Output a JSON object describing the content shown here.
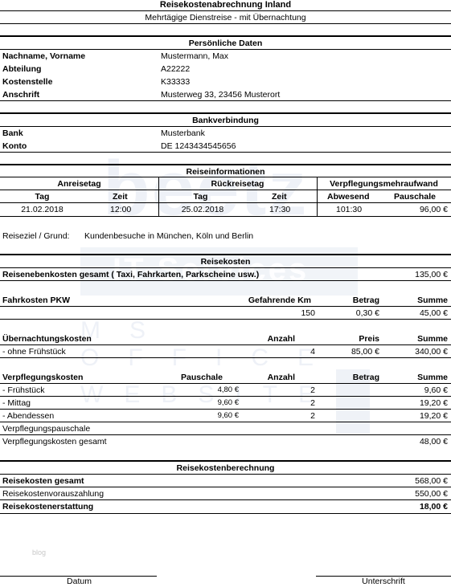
{
  "title": "Reisekostenabrechnung Inland",
  "subtitle": "Mehrtägige Dienstreise - mit Übernachtung",
  "personal": {
    "heading": "Persönliche Daten",
    "rows": [
      {
        "label": "Nachname, Vorname",
        "value": "Mustermann, Max"
      },
      {
        "label": "Abteilung",
        "value": "A22222"
      },
      {
        "label": "Kostenstelle",
        "value": "K33333"
      },
      {
        "label": "Anschrift",
        "value": "Musterweg 33, 23456 Musterort"
      }
    ]
  },
  "bank": {
    "heading": "Bankverbindung",
    "rows": [
      {
        "label": "Bank",
        "value": "Musterbank"
      },
      {
        "label": "Konto",
        "value": "DE 1243434545656"
      }
    ]
  },
  "trip": {
    "heading": "Reiseinformationen",
    "departure_label": "Anreisetag",
    "return_label": "Rückreisetag",
    "allowance_label": "Verpflegungsmehraufwand",
    "col_day": "Tag",
    "col_time": "Zeit",
    "col_absence": "Abwesend",
    "col_flat": "Pauschale",
    "dep_day": "21.02.2018",
    "dep_time": "12:00",
    "ret_day": "25.02.2018",
    "ret_time": "17:30",
    "absence": "101:30",
    "flat": "96,00 €",
    "goal_label": "Reiseziel / Grund:",
    "goal_value": "Kundenbesuche in München, Köln und Berlin"
  },
  "costs": {
    "heading": "Reisekosten",
    "incidental_label": "Reisenebenkosten gesamt ( Taxi, Fahrkarten, Parkscheine usw.)",
    "incidental_value": "135,00 €",
    "car": {
      "label": "Fahrkosten PKW",
      "col_km": "Gefahrende Km",
      "col_rate": "Betrag",
      "col_sum": "Summe",
      "km": "150",
      "rate": "0,30 €",
      "sum": "45,00 €"
    },
    "hotel": {
      "label": "Übernachtungskosten",
      "col_count": "Anzahl",
      "col_price": "Preis",
      "col_sum": "Summe",
      "item": "- ohne Frühstück",
      "count": "4",
      "price": "85,00 €",
      "sum": "340,00 €"
    },
    "meals": {
      "label": "Verpflegungskosten",
      "col_flat": "Pauschale",
      "col_count": "Anzahl",
      "col_amount": "Betrag",
      "col_sum": "Summe",
      "items": [
        {
          "name": "- Frühstück",
          "flat": "4,80 €",
          "count": "2",
          "sum": "9,60 €"
        },
        {
          "name": "- Mittag",
          "flat": "9,60 €",
          "count": "2",
          "sum": "19,20 €"
        },
        {
          "name": "- Abendessen",
          "flat": "9,60 €",
          "count": "2",
          "sum": "19,20 €"
        }
      ],
      "flat_label": "Verpflegungspauschale",
      "total_label": "Verpflegungskosten gesamt",
      "total_value": "48,00 €"
    }
  },
  "calc": {
    "heading": "Reisekostenberechnung",
    "total_label": "Reisekosten gesamt",
    "total_value": "568,00 €",
    "advance_label": "Reisekostenvorauszahlung",
    "advance_value": "550,00 €",
    "refund_label": "Reisekostenerstattung",
    "refund_value": "18,00 €"
  },
  "footer": {
    "blog": "blog",
    "date_label": "Datum",
    "signature_label": "Unterschrift"
  },
  "watermark": {
    "brand": "beetz",
    "band": "IT-Services",
    "line1": "MS OFFICE",
    "line2": "WEBSITE"
  }
}
